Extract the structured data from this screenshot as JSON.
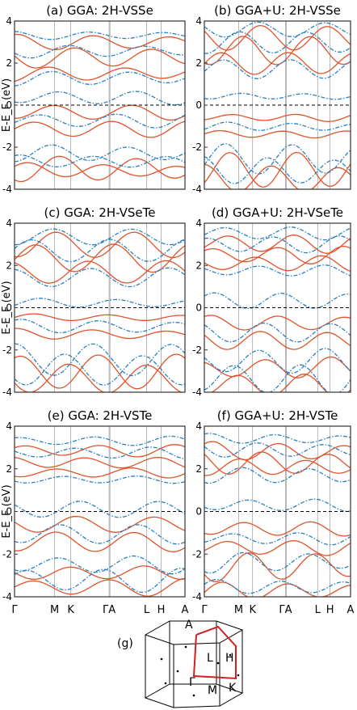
{
  "colors": {
    "spin_up": "#e0532a",
    "spin_down": "#2a7fc1",
    "frame": "#333333",
    "kpoint_lines": "#9a9a9a",
    "fermi_line": "#000000"
  },
  "ylabel": "E-E_F (eV)",
  "kpath_labels": [
    "Γ",
    "M",
    "K",
    "ΓA",
    "L",
    "H",
    "A"
  ],
  "panels": [
    {
      "id": "a",
      "title": "(a) GGA: 2H-VSSe"
    },
    {
      "id": "b",
      "title": "(b) GGA+U: 2H-VSSe"
    },
    {
      "id": "c",
      "title": "(c) GGA: 2H-VSeTe"
    },
    {
      "id": "d",
      "title": "(d) GGA+U: 2H-VSeTe"
    },
    {
      "id": "e",
      "title": "(e) GGA: 2H-VSTe"
    },
    {
      "id": "f",
      "title": "(f) GGA+U: 2H-VSTe"
    }
  ],
  "bz": {
    "label": "(g)",
    "points": [
      "A",
      "L",
      "H",
      "Γ",
      "M",
      "K"
    ]
  },
  "chart_data": [
    {
      "type": "line",
      "title": "(a) GGA: 2H-VSSe",
      "ylabel": "E-E_F (eV)",
      "ylim": [
        -4,
        4
      ],
      "x_ticks": [
        "Γ",
        "M",
        "K",
        "ΓA",
        "L",
        "H",
        "A"
      ],
      "yticks": [
        -4,
        -2,
        0,
        2,
        4
      ],
      "series": [
        {
          "color": "#e0532a",
          "style": "solid",
          "band_y_at_kpoints": [
            [
              2.7,
              2.0,
              2.3,
              3.2,
              2.0,
              2.3,
              2.7
            ],
            [
              1.9,
              1.3,
              1.0,
              2.8,
              1.3,
              1.0,
              1.9
            ],
            [
              -0.4,
              -1.6,
              -1.9,
              -0.6,
              -1.6,
              -1.9,
              -0.4
            ]
          ]
        },
        {
          "color": "#2a7fc1",
          "style": "dash-dot",
          "band_y_at_kpoints": [
            [
              3.1,
              2.6,
              2.4,
              3.4,
              2.6,
              2.4,
              3.1
            ],
            [
              2.3,
              1.6,
              1.4,
              2.9,
              1.6,
              1.4,
              2.3
            ],
            [
              0.2,
              -0.8,
              -1.0,
              0.2,
              -0.8,
              -1.0,
              0.2
            ]
          ]
        }
      ]
    },
    {
      "type": "line",
      "title": "(b) GGA+U: 2H-VSSe",
      "ylabel": "E-E_F (eV)",
      "ylim": [
        -4,
        4
      ],
      "x_ticks": [
        "Γ",
        "M",
        "K",
        "ΓA",
        "L",
        "H",
        "A"
      ],
      "yticks": [
        -4,
        -2,
        0,
        2,
        4
      ]
    },
    {
      "type": "line",
      "title": "(c) GGA: 2H-VSeTe",
      "ylabel": "E-E_F (eV)",
      "ylim": [
        -4,
        4
      ],
      "x_ticks": [
        "Γ",
        "M",
        "K",
        "ΓA",
        "L",
        "H",
        "A"
      ],
      "yticks": [
        -4,
        -2,
        0,
        2,
        4
      ]
    },
    {
      "type": "line",
      "title": "(d) GGA+U: 2H-VSeTe",
      "ylabel": "E-E_F (eV)",
      "ylim": [
        -4,
        4
      ],
      "x_ticks": [
        "Γ",
        "M",
        "K",
        "ΓA",
        "L",
        "H",
        "A"
      ],
      "yticks": [
        -4,
        -2,
        0,
        2,
        4
      ]
    },
    {
      "type": "line",
      "title": "(e) GGA: 2H-VSTe",
      "ylabel": "E-E_F (eV)",
      "ylim": [
        -4,
        4
      ],
      "x_ticks": [
        "Γ",
        "M",
        "K",
        "ΓA",
        "L",
        "H",
        "A"
      ],
      "yticks": [
        -4,
        -2,
        0,
        2,
        4
      ]
    },
    {
      "type": "line",
      "title": "(f) GGA+U: 2H-VSTe",
      "ylabel": "E-E_F (eV)",
      "ylim": [
        -4,
        4
      ],
      "x_ticks": [
        "Γ",
        "M",
        "K",
        "ΓA",
        "L",
        "H",
        "A"
      ],
      "yticks": [
        -4,
        -2,
        0,
        2,
        4
      ]
    }
  ]
}
